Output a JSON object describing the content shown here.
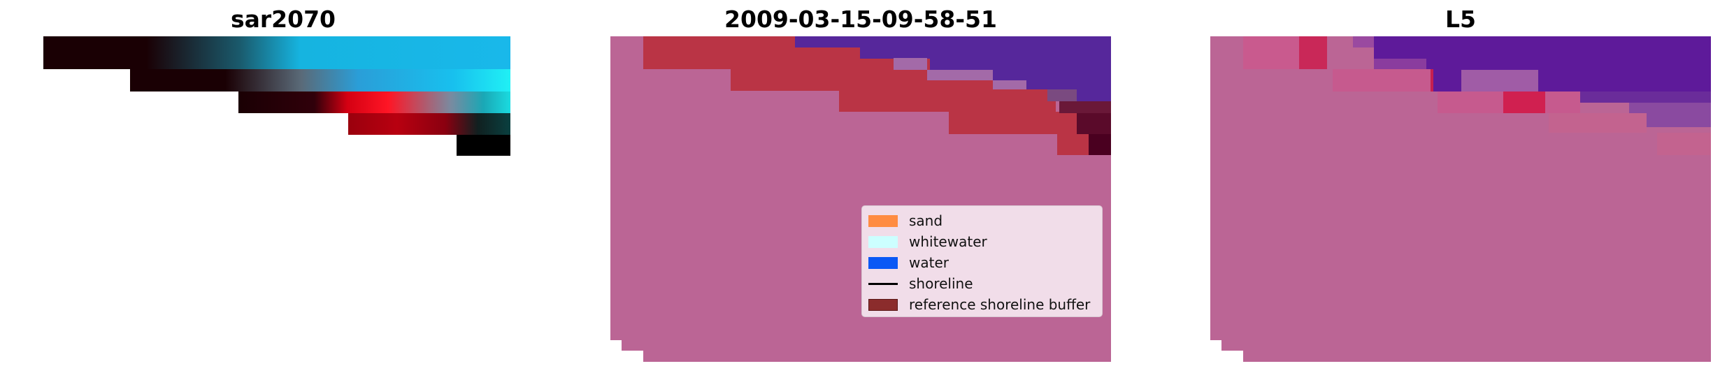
{
  "panels": [
    {
      "title": "sar2070"
    },
    {
      "title": "2009-03-15-09-58-51"
    },
    {
      "title": "L5"
    }
  ],
  "legend": {
    "items": [
      {
        "label": "sand",
        "color": "#ff8c42",
        "kind": "patch"
      },
      {
        "label": "whitewater",
        "color": "#ccffff",
        "kind": "patch"
      },
      {
        "label": "water",
        "color": "#0a58f5",
        "kind": "patch"
      },
      {
        "label": "shoreline",
        "color": "#000000",
        "kind": "line"
      },
      {
        "label": "reference shoreline buffer",
        "color": "#8b2c2c",
        "kind": "patch"
      }
    ]
  },
  "colors": {
    "background": "#ffffff",
    "image_dark": "#1a0004",
    "image_cyan": "#19c3ee",
    "image_red": "#ff0010",
    "overlay_pink": "#bb6595",
    "buffer_red": "#ba3445",
    "water_purple": "#56279b"
  }
}
